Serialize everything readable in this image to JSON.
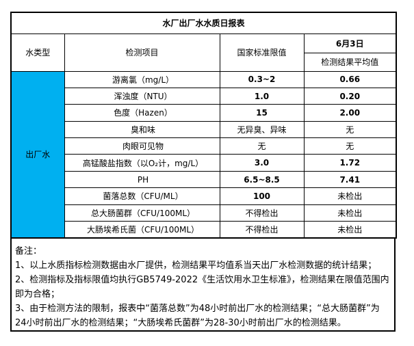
{
  "title": "水厂出厂水水质日报表",
  "table": {
    "header": {
      "water_type": "水类型",
      "test_item": "检测项目",
      "national_standard_limit": "国家标准限值",
      "date": "6月3日",
      "result_avg": "检测结果平均值"
    },
    "water_type_value": "出厂水",
    "rows": [
      {
        "item": "游离氯（mg/L）",
        "limit": "0.3~2",
        "result": "0.66"
      },
      {
        "item": "浑浊度（NTU）",
        "limit": "1.0",
        "result": "0.20"
      },
      {
        "item": "色度（Hazen）",
        "limit": "15",
        "result": "2.00"
      },
      {
        "item": "臭和味",
        "limit": "无异臭、异味",
        "result": "无"
      },
      {
        "item": "肉眼可见物",
        "limit": "无",
        "result": "无"
      },
      {
        "item": "高锰酸盐指数（以O₂计，mg/L）",
        "limit": "3.0",
        "result": "1.72"
      },
      {
        "item": "PH",
        "limit": "6.5~8.5",
        "result": "7.41"
      },
      {
        "item": "菌落总数（CFU/ML）",
        "limit": "100",
        "result": "未检出"
      },
      {
        "item": "总大肠菌群（CFU/100ML）",
        "limit": "不得检出",
        "result": "未检出"
      },
      {
        "item": "大肠埃希氏菌（CFU/100ML）",
        "limit": "不得检出",
        "result": "未检出"
      }
    ]
  },
  "notes": {
    "label": "备注：",
    "lines": [
      "1、以上水质指标检测数据由水厂提供，检测结果平均值系当天出厂水检测数据的统计结果；",
      "2、检测指标及指标限值均执行GB5749-2022《生活饮用水卫生标准》，检测结果在限值范围内即为合格；",
      "3、由于检测方法的限制，报表中“菌落总数”为48小时前出厂水的检测结果；“总大肠菌群”为24小时前出厂水的检测结果；“大肠埃希氏菌群”为28-30小时前出厂水的检测结果。"
    ]
  },
  "colors": {
    "water_type_bg": "#00B0F0",
    "border": "#000000"
  }
}
